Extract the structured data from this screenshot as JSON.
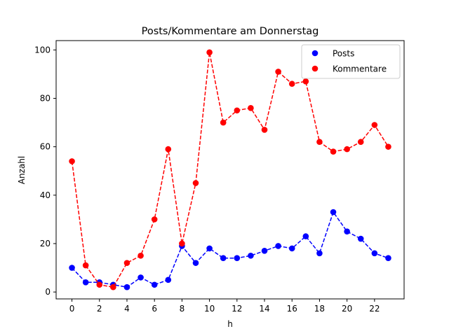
{
  "chart_data": {
    "type": "line",
    "title": "Posts/Kommentare am Donnerstag",
    "xlabel": "h",
    "ylabel": "Anzahl",
    "xlim": [
      -1.15,
      24.15
    ],
    "ylim": [
      -2.85,
      103.85
    ],
    "xticks": [
      0,
      2,
      4,
      6,
      8,
      10,
      12,
      14,
      16,
      18,
      20,
      22
    ],
    "yticks": [
      0,
      20,
      40,
      60,
      80,
      100
    ],
    "grid": false,
    "legend_position": "top-right",
    "x": [
      0,
      1,
      2,
      3,
      4,
      5,
      6,
      7,
      8,
      9,
      10,
      11,
      12,
      13,
      14,
      15,
      16,
      17,
      18,
      19,
      20,
      21,
      22,
      23
    ],
    "series": [
      {
        "name": "Posts",
        "color": "#0000ff",
        "values": [
          10,
          4,
          4,
          3,
          2,
          6,
          3,
          5,
          19,
          12,
          18,
          14,
          14,
          15,
          17,
          19,
          18,
          23,
          16,
          33,
          25,
          22,
          16,
          14
        ]
      },
      {
        "name": "Kommentare",
        "color": "#ff0000",
        "values": [
          54,
          11,
          3,
          2,
          12,
          15,
          30,
          59,
          20,
          45,
          99,
          70,
          75,
          76,
          67,
          91,
          86,
          87,
          62,
          58,
          59,
          62,
          69,
          60
        ]
      }
    ]
  }
}
